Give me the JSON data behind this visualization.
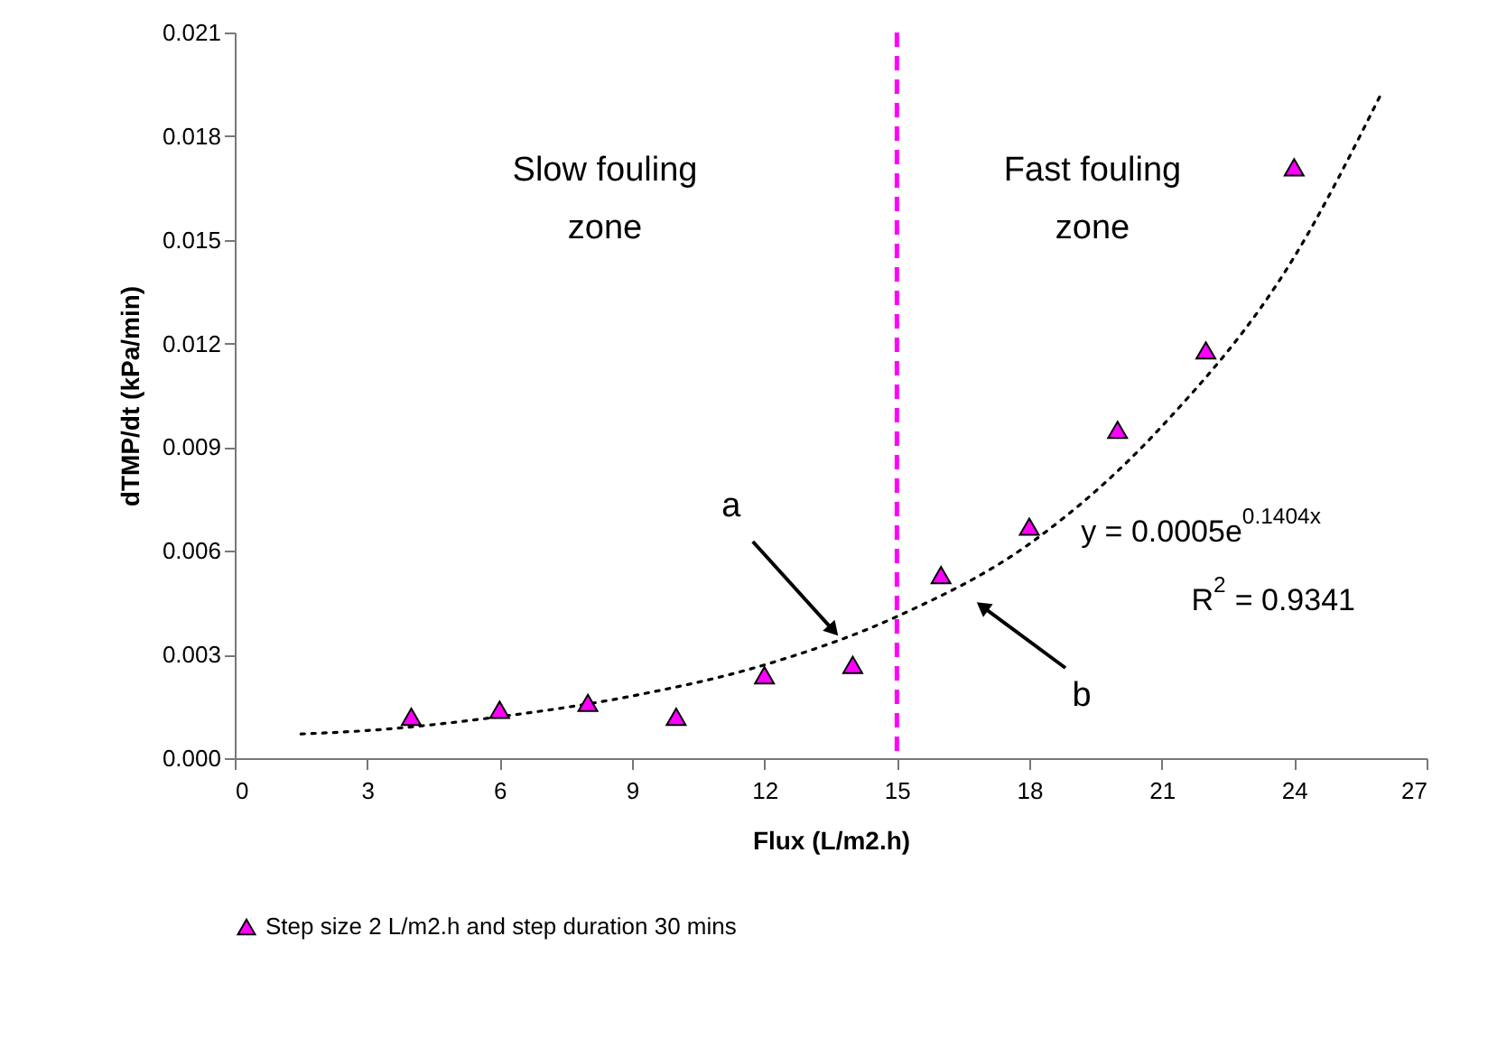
{
  "chart_data": {
    "type": "scatter",
    "xlabel": "Flux (L/m2.h)",
    "ylabel": "dTMP/dt (kPa/min)",
    "x": [
      4,
      6,
      8,
      10,
      12,
      14,
      16,
      18,
      20,
      22,
      24
    ],
    "series": [
      {
        "name": "Step size 2 L/m2.h and step duration 30 mins",
        "color": "#ff00ff",
        "marker": "triangle",
        "values": [
          0.0012,
          0.0014,
          0.0016,
          0.0012,
          0.0024,
          0.0027,
          0.0053,
          0.0067,
          0.0095,
          0.0118,
          0.0171
        ]
      },
      {
        "type": "line",
        "color": "#000000",
        "line_style": "dotted",
        "x": [
          1.5,
          3,
          6,
          9,
          12,
          15,
          18,
          21,
          24,
          26
        ],
        "values": [
          0.0007,
          0.0008,
          0.0012,
          0.0018,
          0.0027,
          0.0041,
          0.0062,
          0.0096,
          0.0145,
          0.0193
        ]
      }
    ],
    "legend": "bottom",
    "grid": false,
    "xlim": [
      0,
      27
    ],
    "xticks": [
      0,
      3,
      6,
      9,
      12,
      15,
      18,
      21,
      24,
      27
    ],
    "ylim": [
      0,
      0.021
    ],
    "yticks": [
      {
        "value": 0,
        "label": "0.000"
      },
      {
        "value": 0.003,
        "label": "0.003"
      },
      {
        "value": 0.006,
        "label": "0.006"
      },
      {
        "value": 0.009,
        "label": "0.009"
      },
      {
        "value": 0.012,
        "label": "0.012"
      },
      {
        "value": 0.015,
        "label": "0.015"
      },
      {
        "value": 0.018,
        "label": "0.018"
      },
      {
        "value": 0.021,
        "label": "0.021"
      }
    ],
    "ref_lines": [
      {
        "axis": "x",
        "value": 15,
        "color": "#ff00ff",
        "line_style": "dashed"
      }
    ],
    "annotations": [
      "Slow fouling zone",
      "Fast fouling zone",
      "y = 0.0005e$^{0.1404x}$",
      "R$^{2}$ = 0.9341",
      {
        "text": "a",
        "x": 13.7,
        "y": 0.0035
      },
      "b"
    ]
  }
}
